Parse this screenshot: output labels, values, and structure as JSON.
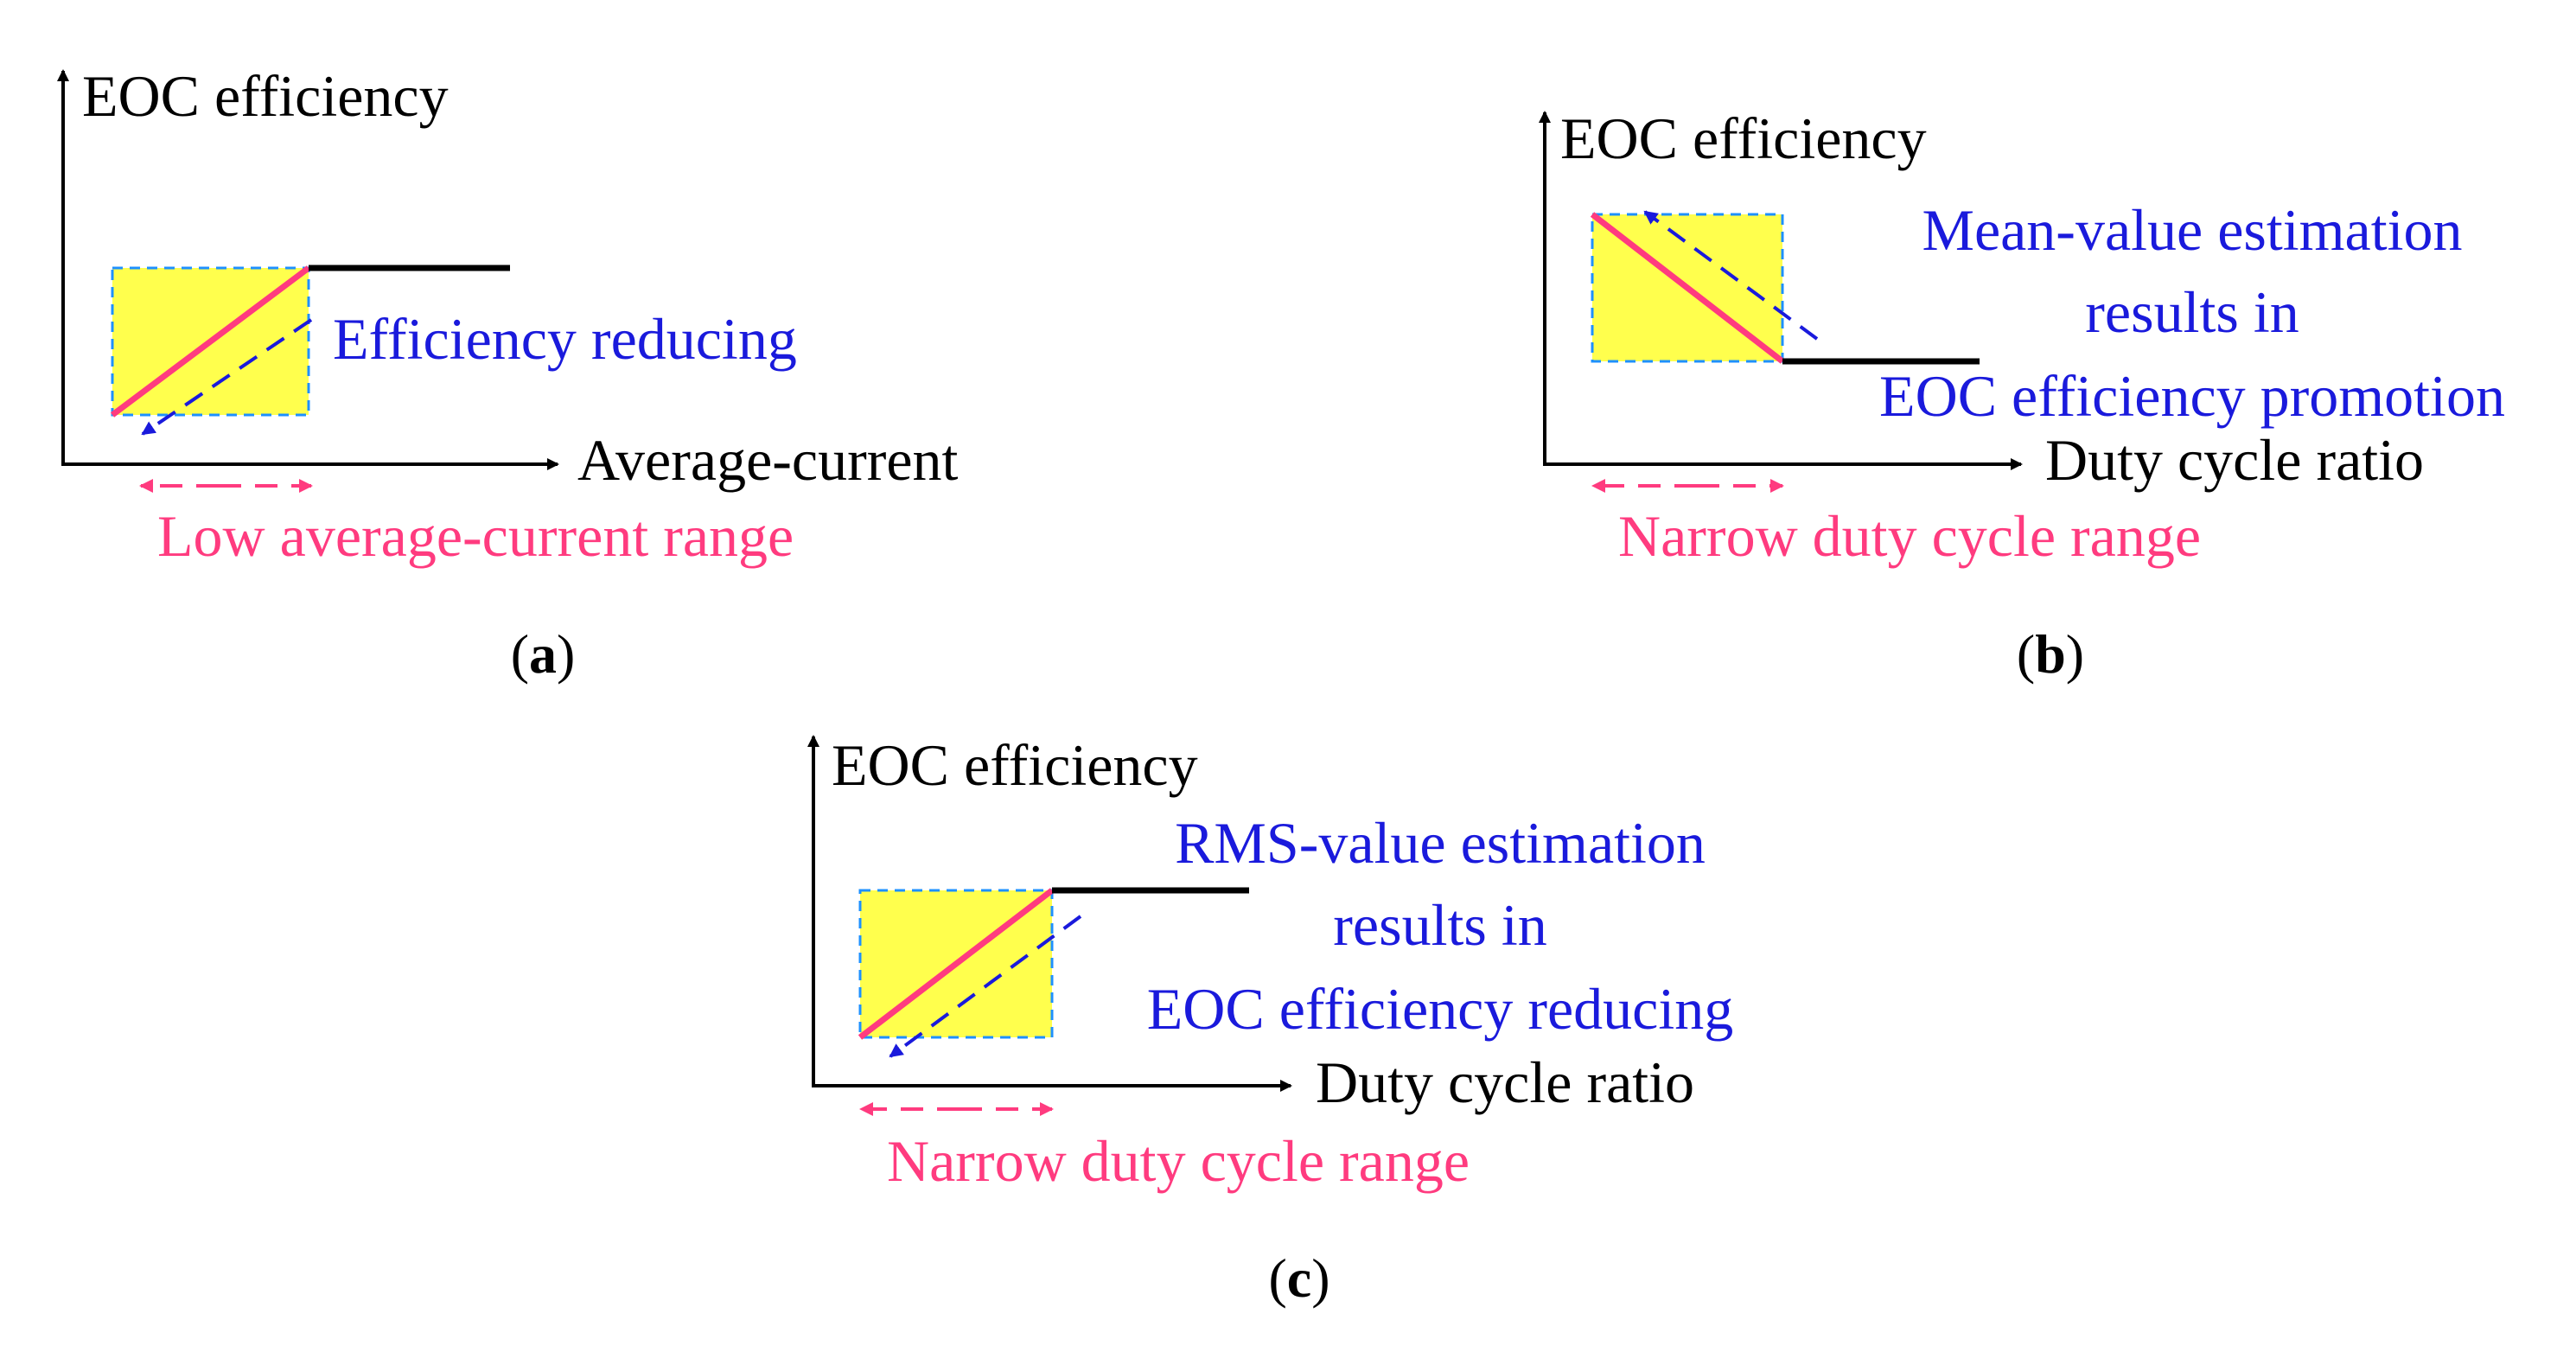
{
  "colors": {
    "axis": "#000000",
    "highlight_fill": "#ffff4d",
    "box_border": "#1e90ff",
    "pink": "#ff3b7f",
    "blue": "#1a1adc",
    "black_line": "#000000"
  },
  "panel_a": {
    "y_axis_label": "EOC efficiency",
    "x_axis_label": "Average-current",
    "annotation": "Efficiency reducing",
    "range_label": "Low average-current range",
    "caption_open": "(",
    "caption_letter": "a",
    "caption_close": ")"
  },
  "panel_b": {
    "y_axis_label": "EOC efficiency",
    "x_axis_label": "Duty cycle ratio",
    "annotation_lines": [
      "Mean-value estimation",
      "results in",
      "EOC efficiency promotion"
    ],
    "range_label": "Narrow duty cycle range",
    "caption_open": "(",
    "caption_letter": "b",
    "caption_close": ")"
  },
  "panel_c": {
    "y_axis_label": "EOC efficiency",
    "x_axis_label": "Duty cycle ratio",
    "annotation_lines": [
      "RMS-value estimation",
      "results in",
      "EOC efficiency reducing"
    ],
    "range_label": "Narrow duty cycle range",
    "caption_open": "(",
    "caption_letter": "c",
    "caption_close": ")"
  }
}
